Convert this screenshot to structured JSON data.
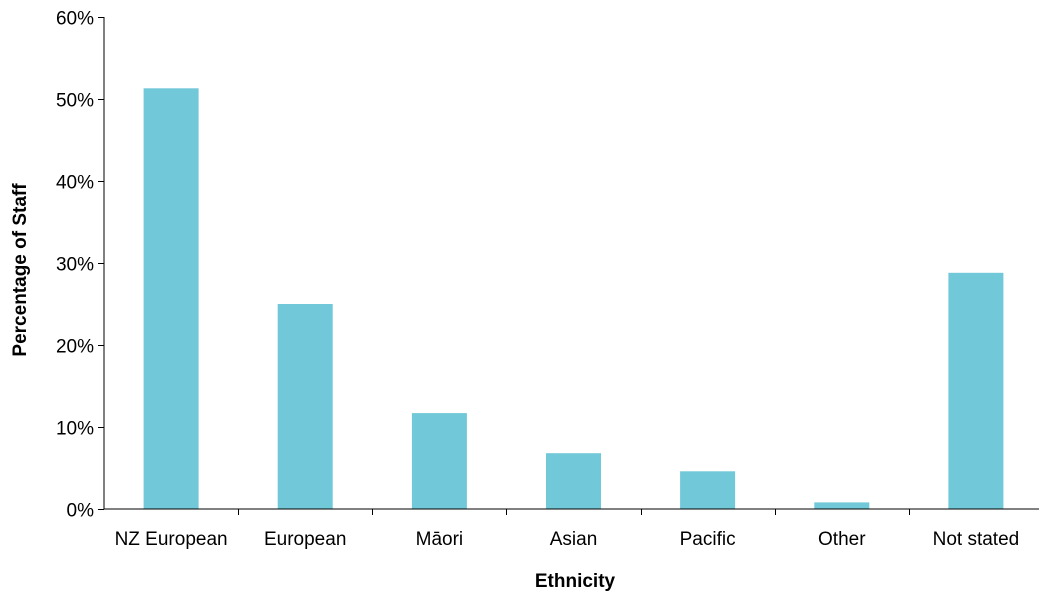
{
  "chart_data": {
    "type": "bar",
    "title": "",
    "xlabel": "Ethnicity",
    "ylabel": "Percentage of Staff",
    "categories": [
      "NZ European",
      "European",
      "Māori",
      "Asian",
      "Pacific",
      "Other",
      "Not stated"
    ],
    "values": [
      51.3,
      25.0,
      11.7,
      6.8,
      4.6,
      0.8,
      28.8
    ],
    "ylim": [
      0,
      60
    ],
    "yticks": [
      0,
      10,
      20,
      30,
      40,
      50,
      60
    ],
    "ytick_labels": [
      "0%",
      "10%",
      "20%",
      "30%",
      "40%",
      "50%",
      "60%"
    ],
    "bar_color": "#70c8d8",
    "grid": false,
    "legend": "none"
  }
}
